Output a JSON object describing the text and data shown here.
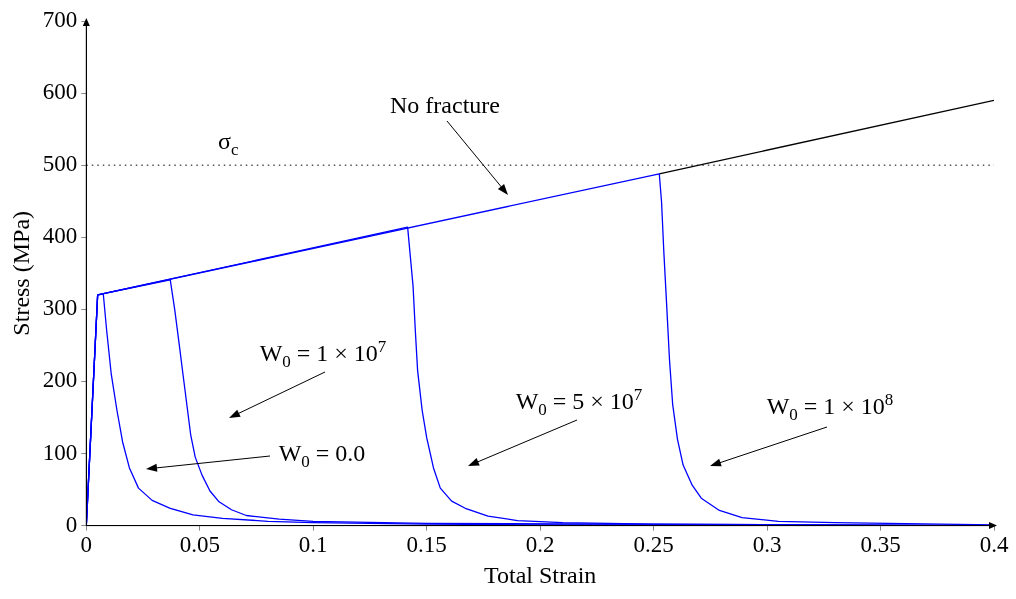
{
  "chart_data": {
    "type": "line",
    "xlabel": "Total Strain",
    "ylabel": "Stress (MPa)",
    "series": [
      {
        "color": "#0000ff",
        "x": [
          0,
          0.005,
          0.0075,
          0.009,
          0.011,
          0.0135,
          0.016,
          0.019,
          0.023,
          0.029,
          0.037,
          0.047,
          0.06,
          0.08,
          0.1,
          0.15,
          0.2,
          0.4
        ],
        "values": [
          0,
          320,
          321,
          270,
          210,
          160,
          116,
          80,
          52,
          35,
          24,
          15,
          10,
          6,
          4,
          2,
          1,
          0
        ]
      },
      {
        "color": "#0000ff",
        "x": [
          0,
          0.005,
          0.037,
          0.039,
          0.041,
          0.0426,
          0.046,
          0.048,
          0.051,
          0.0545,
          0.0585,
          0.064,
          0.0705,
          0.085,
          0.1,
          0.15,
          0.4
        ],
        "values": [
          0,
          320,
          341,
          299,
          250,
          210,
          126,
          95,
          70,
          48,
          33,
          22,
          14,
          9,
          6,
          3,
          0
        ]
      },
      {
        "color": "#0000ff",
        "x": [
          0,
          0.005,
          0.1416,
          0.144,
          0.145,
          0.146,
          0.148,
          0.15,
          0.153,
          0.156,
          0.161,
          0.167,
          0.177,
          0.19,
          0.21,
          0.25,
          0.4
        ],
        "values": [
          0,
          320,
          414,
          332,
          270,
          215,
          160,
          122,
          80,
          52,
          34,
          24,
          13,
          7,
          4,
          2,
          0
        ]
      },
      {
        "color": "#0000ff",
        "x": [
          0,
          0.005,
          0.2525,
          0.2535,
          0.2545,
          0.2557,
          0.257,
          0.2584,
          0.2605,
          0.263,
          0.267,
          0.271,
          0.279,
          0.289,
          0.305,
          0.33,
          0.4
        ],
        "values": [
          0,
          320,
          488,
          449,
          380,
          309,
          230,
          168,
          120,
          84,
          56,
          38,
          21,
          11,
          6,
          4,
          1
        ]
      },
      {
        "color": "#000000",
        "x": [
          0.2525,
          0.4
        ],
        "values": [
          488,
          590
        ]
      }
    ],
    "xlim": [
      0,
      0.4
    ],
    "xticks": [
      0,
      0.05,
      0.1,
      0.15,
      0.2,
      0.25,
      0.3,
      0.35,
      0.4
    ],
    "ylim": [
      0,
      700
    ],
    "yticks": [
      0,
      100,
      200,
      300,
      400,
      500,
      600,
      700
    ],
    "ref_lines": [
      {
        "axis": "y",
        "value": 500,
        "label": "σ$_{c}$",
        "color": "#000000",
        "line_style": "dotted"
      }
    ],
    "annotations": [
      "No fracture",
      "W$_{0}$ = 1 × 10$^{7}$",
      "W$_{0}$ = 0.0",
      "W$_{0}$ = 5 × 10$^{7}$",
      "W$_{0}$ = 1 × 10$^{8}$"
    ],
    "grid": false,
    "legend": false,
    "marker": "none",
    "line_style": "solid"
  }
}
